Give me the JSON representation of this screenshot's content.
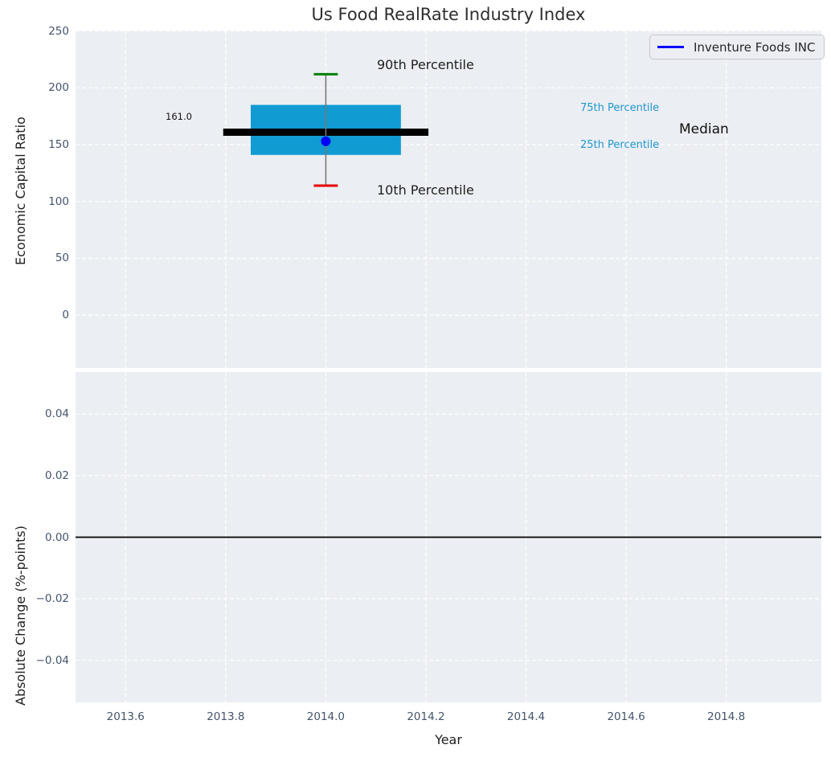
{
  "chart_data": [
    {
      "type": "boxplot",
      "title": "Us Food RealRate Industry Index",
      "ylabel": "Economic Capital Ratio",
      "xlim": [
        2013.5,
        2014.99
      ],
      "ylim": [
        -46.5,
        250.4
      ],
      "yticks": [
        {
          "v": 250,
          "label": "250"
        },
        {
          "v": 200,
          "label": "200"
        },
        {
          "v": 150,
          "label": "150"
        },
        {
          "v": 100,
          "label": "100"
        },
        {
          "v": 50,
          "label": "50"
        },
        {
          "v": 0,
          "label": "0"
        }
      ],
      "series": {
        "x": 2014.0,
        "p90": 212,
        "p75": 185,
        "median": 161.0,
        "p25": 141,
        "p10": 114,
        "box_halfwidth": 0.15,
        "median_halfwidth": 0.205,
        "cap_halfwidth": 0.024,
        "company": {
          "name": "Inventure Foods INC",
          "value": 153
        }
      },
      "annotations": [
        {
          "id": "p90",
          "text": "90th Percentile"
        },
        {
          "id": "p10",
          "text": "10th Percentile"
        },
        {
          "id": "p75",
          "text": "75th Percentile"
        },
        {
          "id": "p25",
          "text": "25th Percentile"
        },
        {
          "id": "median",
          "text": "Median"
        },
        {
          "id": "median_value",
          "text": "161.0"
        }
      ],
      "legend": {
        "label": "Inventure Foods INC",
        "position": "upper-right"
      },
      "style": {
        "bg": "#ebeef2",
        "grid_color": "#ffffff",
        "grid_dashed": true,
        "tick_color": "#44546a",
        "box_color": "#109bd2",
        "median_color": "#000000",
        "whisker_color": "#777777",
        "cap90_color": "#008000",
        "cap10_color": "#e60000",
        "company_color": "#0000ff",
        "percentile_text_color": "#2097cd"
      }
    },
    {
      "type": "line",
      "ylabel": "Absolute Change (%-points)",
      "xlabel": "Year",
      "xlim": [
        2013.5,
        2014.99
      ],
      "ylim": [
        -0.0537,
        0.0537
      ],
      "yticks": [
        {
          "v": 0.04,
          "label": "0.04"
        },
        {
          "v": 0.02,
          "label": "0.02"
        },
        {
          "v": 0.0,
          "label": "0.00"
        },
        {
          "v": -0.02,
          "label": "−0.02"
        },
        {
          "v": -0.04,
          "label": "−0.04"
        }
      ],
      "xticks": [
        {
          "v": 2013.6,
          "label": "2013.6"
        },
        {
          "v": 2013.8,
          "label": "2013.8"
        },
        {
          "v": 2014.0,
          "label": "2014.0"
        },
        {
          "v": 2014.2,
          "label": "2014.2"
        },
        {
          "v": 2014.4,
          "label": "2014.4"
        },
        {
          "v": 2014.6,
          "label": "2014.6"
        },
        {
          "v": 2014.8,
          "label": "2014.8"
        }
      ],
      "zero_line": 0.0,
      "data_points": []
    }
  ]
}
